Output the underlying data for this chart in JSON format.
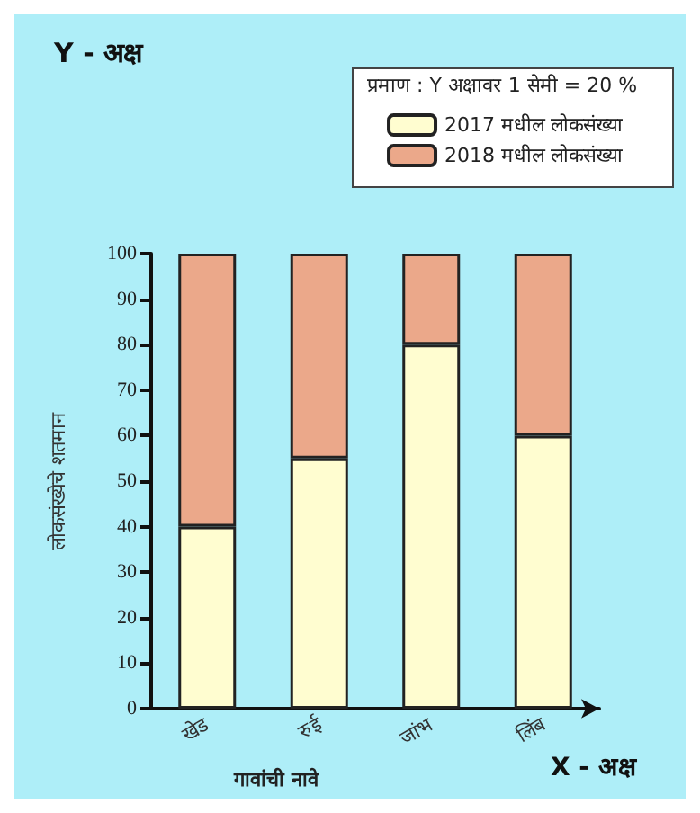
{
  "chart_data": {
    "type": "bar",
    "stacked": true,
    "categories": [
      "खेड",
      "रुई",
      "जांभ",
      "लिंब"
    ],
    "series": [
      {
        "name": "2017 मधील लोकसंख्या",
        "color": "#fffdd0",
        "values": [
          40,
          55,
          80,
          60
        ]
      },
      {
        "name": "2018 मधील लोकसंख्या",
        "color": "#eba88a",
        "values": [
          60,
          45,
          20,
          40
        ]
      }
    ],
    "xlabel": "गावांची नावे",
    "ylabel": "लोकसंख्येचे शतमान",
    "ylim": [
      0,
      100
    ],
    "yticks": [
      0,
      10,
      20,
      30,
      40,
      50,
      60,
      70,
      80,
      90,
      100
    ],
    "legend": "top right",
    "grid": false,
    "annotations": [
      "Y - अक्ष",
      "X - अक्ष",
      "प्रमाण : Y अक्षावर 1 सेमी = 20 %"
    ]
  }
}
